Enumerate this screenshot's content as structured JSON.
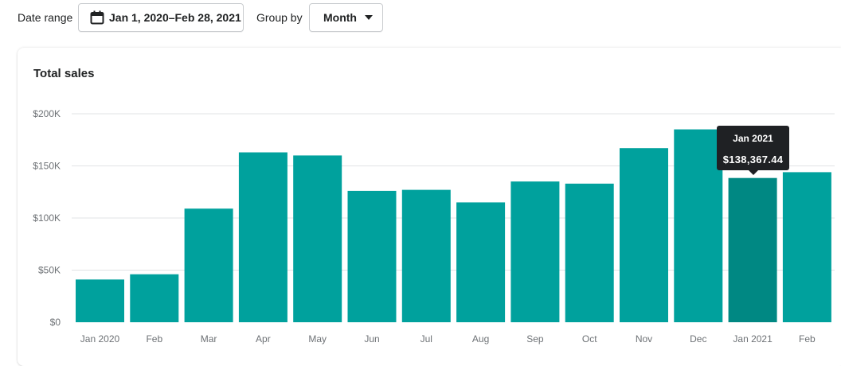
{
  "filters": {
    "date_range_label": "Date range",
    "date_range_value": "Jan 1, 2020–Feb 28, 2021",
    "group_by_label": "Group by",
    "group_by_value": "Month"
  },
  "card": {
    "title": "Total sales"
  },
  "tooltip": {
    "label": "Jan 2021",
    "value": "$138,367.44"
  },
  "colors": {
    "bar": "#00a19d",
    "bar_highlight": "#008883",
    "grid": "#e1e3e5"
  },
  "chart_data": {
    "type": "bar",
    "title": "Total sales",
    "categories": [
      "Jan 2020",
      "Feb",
      "Mar",
      "Apr",
      "May",
      "Jun",
      "Jul",
      "Aug",
      "Sep",
      "Oct",
      "Nov",
      "Dec",
      "Jan 2021",
      "Feb"
    ],
    "values": [
      41000,
      46000,
      109000,
      163000,
      160000,
      126000,
      127000,
      115000,
      135000,
      133000,
      167000,
      185000,
      138367.44,
      144000
    ],
    "highlight_index": 12,
    "yticks": [
      0,
      50000,
      100000,
      150000,
      200000
    ],
    "ytick_labels": [
      "$0",
      "$50K",
      "$100K",
      "$150K",
      "$200K"
    ],
    "ylim": [
      0,
      200000
    ],
    "grid": true,
    "xlabel": "",
    "ylabel": ""
  }
}
